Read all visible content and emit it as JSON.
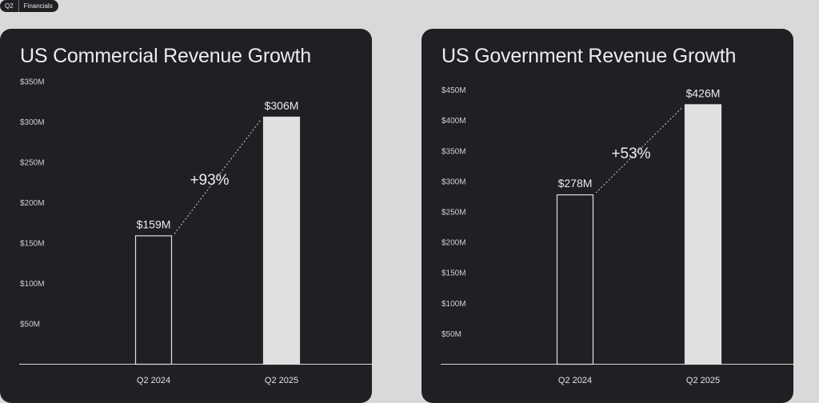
{
  "tag": {
    "left": "Q2",
    "right": "Financials"
  },
  "colors": {
    "page_bg": "#d9d9d9",
    "card_bg": "#1e2023",
    "bar_filled": "#e0e0e0",
    "bar_outline": "#e0e0e0",
    "text": "#ececec"
  },
  "chart_data": [
    {
      "type": "bar",
      "title": "US Commercial Revenue Growth",
      "categories": [
        "Q2 2024",
        "Q2 2025"
      ],
      "values": [
        159,
        306
      ],
      "value_labels": [
        "$159M",
        "$306M"
      ],
      "bar_styles": [
        "outline",
        "filled"
      ],
      "growth_label": "+93%",
      "yticks": [
        50,
        100,
        150,
        200,
        250,
        300,
        350
      ],
      "ytick_labels": [
        "$50M",
        "$100M",
        "$150M",
        "$200M",
        "$250M",
        "$300M",
        "$350M"
      ],
      "ylim": [
        0,
        350
      ],
      "unit": "$M",
      "grid": false
    },
    {
      "type": "bar",
      "title": "US Government Revenue Growth",
      "categories": [
        "Q2 2024",
        "Q2 2025"
      ],
      "values": [
        278,
        426
      ],
      "value_labels": [
        "$278M",
        "$426M"
      ],
      "bar_styles": [
        "outline",
        "filled"
      ],
      "growth_label": "+53%",
      "yticks": [
        50,
        100,
        150,
        200,
        250,
        300,
        350,
        400,
        450
      ],
      "ytick_labels": [
        "$50M",
        "$100M",
        "$150M",
        "$200M",
        "$250M",
        "$300M",
        "$350M",
        "$400M",
        "$450M"
      ],
      "ylim": [
        0,
        450
      ],
      "unit": "$M",
      "grid": false
    }
  ]
}
